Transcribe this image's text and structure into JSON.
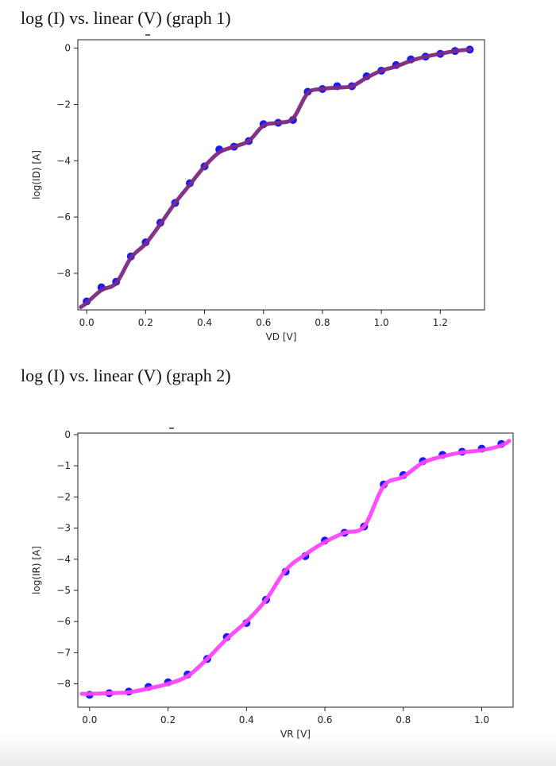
{
  "headings": [
    "log (I) vs. linear (V) (graph 1)",
    "log (I) vs. linear (V) (graph 2)"
  ],
  "chart_data": [
    {
      "type": "line",
      "title": "",
      "xlabel": "VD [V]",
      "ylabel": "log(ID) [A]",
      "xlim": [
        -0.03,
        1.35
      ],
      "ylim": [
        -9.3,
        0.3
      ],
      "xticks": [
        0.0,
        0.2,
        0.4,
        0.6,
        0.8,
        1.0,
        1.2
      ],
      "xtick_labels": [
        "0.0",
        "0.2",
        "0.4",
        "0.6",
        "0.8",
        "1.0",
        "1.2"
      ],
      "yticks": [
        0,
        -2,
        -4,
        -6,
        -8
      ],
      "ytick_labels": [
        "0",
        "−2",
        "−4",
        "−6",
        "−8"
      ],
      "grid": false,
      "colors": {
        "points": "#1a1aff",
        "line": "#7b2a82"
      },
      "series": [
        {
          "style": "scatter",
          "x": [
            0.0,
            0.05,
            0.1,
            0.15,
            0.2,
            0.25,
            0.3,
            0.35,
            0.4,
            0.45,
            0.5,
            0.55,
            0.6,
            0.65,
            0.7,
            0.75,
            0.8,
            0.85,
            0.9,
            0.95,
            1.0,
            1.05,
            1.1,
            1.15,
            1.2,
            1.25,
            1.3
          ],
          "y": [
            -9.0,
            -8.5,
            -8.3,
            -7.4,
            -6.9,
            -6.2,
            -5.5,
            -4.8,
            -4.2,
            -3.6,
            -3.5,
            -3.3,
            -2.7,
            -2.65,
            -2.55,
            -1.55,
            -1.45,
            -1.35,
            -1.35,
            -1.0,
            -0.8,
            -0.6,
            -0.4,
            -0.3,
            -0.2,
            -0.1,
            -0.05
          ]
        },
        {
          "style": "line",
          "x": [
            -0.02,
            0.0,
            0.05,
            0.1,
            0.15,
            0.2,
            0.25,
            0.3,
            0.35,
            0.4,
            0.45,
            0.5,
            0.55,
            0.6,
            0.65,
            0.7,
            0.75,
            0.8,
            0.85,
            0.9,
            0.95,
            1.0,
            1.05,
            1.1,
            1.15,
            1.2,
            1.25,
            1.3
          ],
          "y": [
            -9.2,
            -9.05,
            -8.6,
            -8.35,
            -7.45,
            -6.95,
            -6.25,
            -5.5,
            -4.85,
            -4.2,
            -3.7,
            -3.5,
            -3.3,
            -2.75,
            -2.65,
            -2.5,
            -1.6,
            -1.45,
            -1.4,
            -1.35,
            -1.05,
            -0.8,
            -0.65,
            -0.45,
            -0.3,
            -0.2,
            -0.1,
            -0.05
          ]
        }
      ]
    },
    {
      "type": "line",
      "title": "",
      "xlabel": "VR [V]",
      "ylabel": "log(IR) [A]",
      "xlim": [
        -0.03,
        1.08
      ],
      "ylim": [
        -8.75,
        0.05
      ],
      "xticks": [
        0.0,
        0.2,
        0.4,
        0.6,
        0.8,
        1.0
      ],
      "xtick_labels": [
        "0.0",
        "0.2",
        "0.4",
        "0.6",
        "0.8",
        "1.0"
      ],
      "yticks": [
        0,
        -1,
        -2,
        -3,
        -4,
        -5,
        -6,
        -7,
        -8
      ],
      "ytick_labels": [
        "0",
        "−1",
        "−2",
        "−3",
        "−4",
        "−5",
        "−6",
        "−7",
        "−8"
      ],
      "grid": false,
      "colors": {
        "points": "#1a1aff",
        "line": "#ff44ff"
      },
      "series": [
        {
          "style": "scatter",
          "x": [
            0.0,
            0.05,
            0.1,
            0.15,
            0.2,
            0.25,
            0.3,
            0.35,
            0.4,
            0.45,
            0.5,
            0.55,
            0.6,
            0.65,
            0.7,
            0.75,
            0.8,
            0.85,
            0.9,
            0.95,
            1.0,
            1.05
          ],
          "y": [
            -8.35,
            -8.3,
            -8.25,
            -8.1,
            -7.95,
            -7.7,
            -7.2,
            -6.5,
            -6.05,
            -5.3,
            -4.4,
            -3.9,
            -3.4,
            -3.15,
            -2.95,
            -1.6,
            -1.3,
            -0.85,
            -0.65,
            -0.55,
            -0.45,
            -0.3
          ]
        },
        {
          "style": "line",
          "x": [
            -0.02,
            0.0,
            0.05,
            0.1,
            0.15,
            0.2,
            0.25,
            0.3,
            0.35,
            0.4,
            0.45,
            0.5,
            0.55,
            0.6,
            0.65,
            0.7,
            0.75,
            0.8,
            0.85,
            0.9,
            0.95,
            1.0,
            1.05,
            1.07
          ],
          "y": [
            -8.32,
            -8.32,
            -8.3,
            -8.27,
            -8.15,
            -8.0,
            -7.75,
            -7.2,
            -6.55,
            -6.0,
            -5.3,
            -4.35,
            -3.85,
            -3.45,
            -3.15,
            -2.95,
            -1.65,
            -1.35,
            -0.9,
            -0.7,
            -0.57,
            -0.5,
            -0.35,
            -0.2
          ]
        }
      ]
    }
  ]
}
